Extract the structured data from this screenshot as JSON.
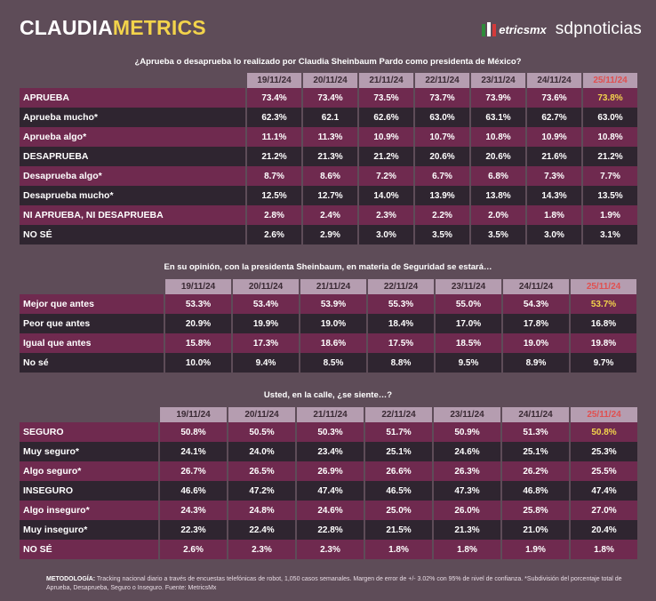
{
  "brand": {
    "part1": "CLAUDIA",
    "part2": "METRICS"
  },
  "logos": {
    "metrics": "etricsmx",
    "sdp": "sdpnoticias"
  },
  "chart_data": [
    {
      "type": "table",
      "title": "¿Aprueba o desaprueba lo realizado por Claudia Sheinbaum Pardo como presidenta de México?",
      "dates": [
        "19/11/24",
        "20/11/24",
        "21/11/24",
        "22/11/24",
        "23/11/24",
        "24/11/24",
        "25/11/24"
      ],
      "rows": [
        {
          "label": "APRUEBA",
          "values": [
            "73.4%",
            "73.4%",
            "73.5%",
            "73.7%",
            "73.9%",
            "73.6%",
            "73.8%"
          ]
        },
        {
          "label": "Aprueba mucho*",
          "values": [
            "62.3%",
            "62.1",
            "62.6%",
            "63.0%",
            "63.1%",
            "62.7%",
            "63.0%"
          ]
        },
        {
          "label": "Aprueba algo*",
          "values": [
            "11.1%",
            "11.3%",
            "10.9%",
            "10.7%",
            "10.8%",
            "10.9%",
            "10.8%"
          ]
        },
        {
          "label": "DESAPRUEBA",
          "values": [
            "21.2%",
            "21.3%",
            "21.2%",
            "20.6%",
            "20.6%",
            "21.6%",
            "21.2%"
          ]
        },
        {
          "label": "Desaprueba algo*",
          "values": [
            "8.7%",
            "8.6%",
            "7.2%",
            "6.7%",
            "6.8%",
            "7.3%",
            "7.7%"
          ]
        },
        {
          "label": "Desaprueba mucho*",
          "values": [
            "12.5%",
            "12.7%",
            "14.0%",
            "13.9%",
            "13.8%",
            "14.3%",
            "13.5%"
          ]
        },
        {
          "label": "NI APRUEBA, NI DESAPRUEBA",
          "values": [
            "2.8%",
            "2.4%",
            "2.3%",
            "2.2%",
            "2.0%",
            "1.8%",
            "1.9%"
          ]
        },
        {
          "label": "NO SÉ",
          "values": [
            "2.6%",
            "2.9%",
            "3.0%",
            "3.5%",
            "3.5%",
            "3.0%",
            "3.1%"
          ]
        }
      ]
    },
    {
      "type": "table",
      "title": "En su opinión, con la presidenta Sheinbaum, en materia de Seguridad se estará…",
      "dates": [
        "19/11/24",
        "20/11/24",
        "21/11/24",
        "22/11/24",
        "23/11/24",
        "24/11/24",
        "25/11/24"
      ],
      "rows": [
        {
          "label": "Mejor que antes",
          "values": [
            "53.3%",
            "53.4%",
            "53.9%",
            "55.3%",
            "55.0%",
            "54.3%",
            "53.7%"
          ]
        },
        {
          "label": "Peor que antes",
          "values": [
            "20.9%",
            "19.9%",
            "19.0%",
            "18.4%",
            "17.0%",
            "17.8%",
            "16.8%"
          ]
        },
        {
          "label": "Igual que antes",
          "values": [
            "15.8%",
            "17.3%",
            "18.6%",
            "17.5%",
            "18.5%",
            "19.0%",
            "19.8%"
          ]
        },
        {
          "label": "No sé",
          "values": [
            "10.0%",
            "9.4%",
            "8.5%",
            "8.8%",
            "9.5%",
            "8.9%",
            "9.7%"
          ]
        }
      ]
    },
    {
      "type": "table",
      "title": "Usted, en la calle, ¿se siente…?",
      "dates": [
        "19/11/24",
        "20/11/24",
        "21/11/24",
        "22/11/24",
        "23/11/24",
        "24/11/24",
        "25/11/24"
      ],
      "rows": [
        {
          "label": "SEGURO",
          "values": [
            "50.8%",
            "50.5%",
            "50.3%",
            "51.7%",
            "50.9%",
            "51.3%",
            "50.8%"
          ]
        },
        {
          "label": "Muy seguro*",
          "values": [
            "24.1%",
            "24.0%",
            "23.4%",
            "25.1%",
            "24.6%",
            "25.1%",
            "25.3%"
          ]
        },
        {
          "label": "Algo seguro*",
          "values": [
            "26.7%",
            "26.5%",
            "26.9%",
            "26.6%",
            "26.3%",
            "26.2%",
            "25.5%"
          ]
        },
        {
          "label": "INSEGURO",
          "values": [
            "46.6%",
            "47.2%",
            "47.4%",
            "46.5%",
            "47.3%",
            "46.8%",
            "47.4%"
          ]
        },
        {
          "label": "Algo inseguro*",
          "values": [
            "24.3%",
            "24.8%",
            "24.6%",
            "25.0%",
            "26.0%",
            "25.8%",
            "27.0%"
          ]
        },
        {
          "label": "Muy inseguro*",
          "values": [
            "22.3%",
            "22.4%",
            "22.8%",
            "21.5%",
            "21.3%",
            "21.0%",
            "20.4%"
          ]
        },
        {
          "label": "NO SÉ",
          "values": [
            "2.6%",
            "2.3%",
            "2.3%",
            "1.8%",
            "1.8%",
            "1.9%",
            "1.8%"
          ]
        }
      ]
    }
  ],
  "footer": {
    "label": "METODOLOGÍA:",
    "text": " Tracking nacional diario a través de encuestas telefónicas de robot, 1,050 casos semanales. Margen de error de +/- 3.02% con 95% de nivel de confianza. *Subdivisión del porcentaje total de Aprueba, Desaprueba, Seguro o Inseguro. Fuente: MetricsMx"
  }
}
